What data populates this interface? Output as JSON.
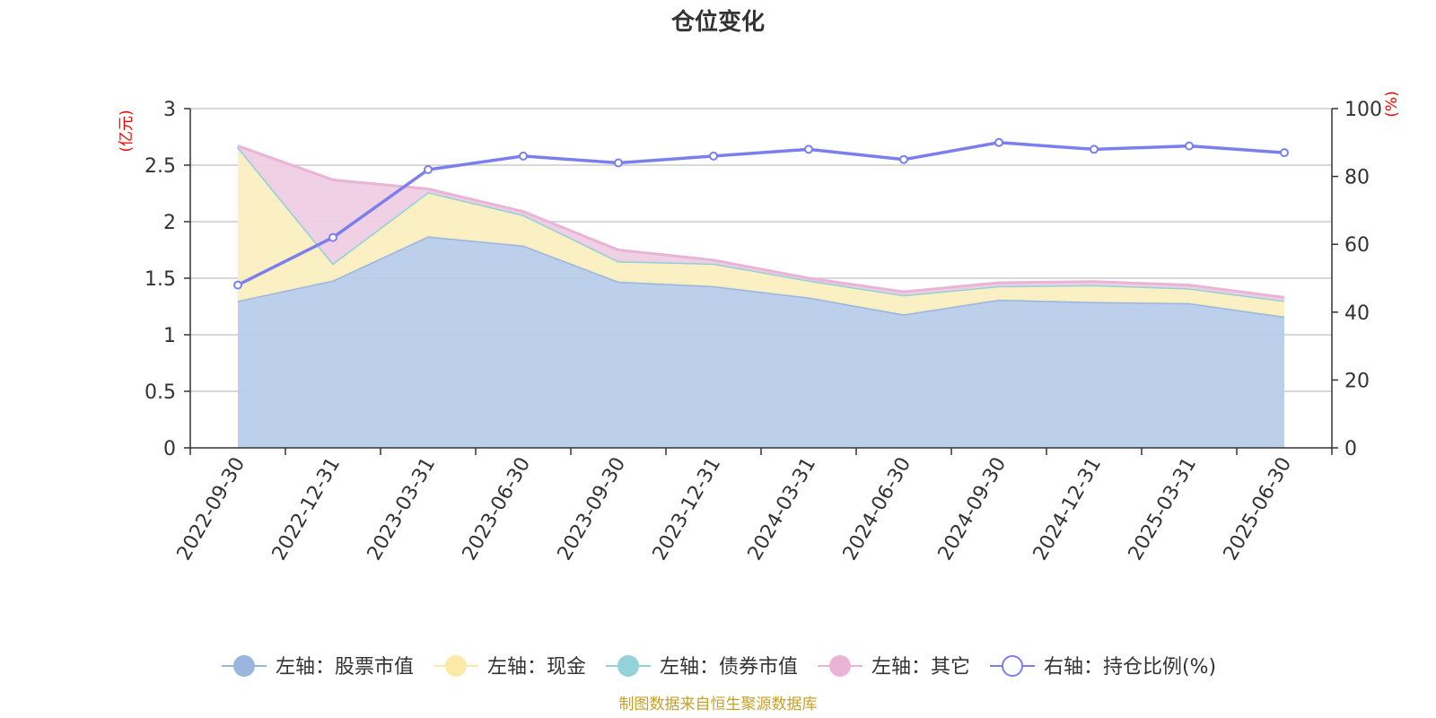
{
  "chart_data": {
    "type": "area",
    "title": "仓位变化",
    "left_unit": "(亿元)",
    "right_unit": "(%)",
    "source_note": "制图数据来自恒生聚源数据库",
    "categories": [
      "2022-09-30",
      "2022-12-31",
      "2023-03-31",
      "2023-06-30",
      "2023-09-30",
      "2023-12-31",
      "2024-03-31",
      "2024-06-30",
      "2024-09-30",
      "2024-12-31",
      "2025-03-31",
      "2025-06-30"
    ],
    "left_axis": {
      "min": 0,
      "max": 3,
      "ticks": [
        "0",
        "0.5",
        "1",
        "1.5",
        "2",
        "2.5",
        "3"
      ]
    },
    "right_axis": {
      "min": 0,
      "max": 100,
      "ticks": [
        "0",
        "20",
        "40",
        "60",
        "80",
        "100"
      ]
    },
    "stacked_series": [
      {
        "name": "左轴：股票市值",
        "color": "#9ab5de",
        "fill": "#b8cdea",
        "values": [
          1.3,
          1.48,
          1.87,
          1.79,
          1.47,
          1.43,
          1.33,
          1.18,
          1.31,
          1.29,
          1.28,
          1.16
        ]
      },
      {
        "name": "左轴：现金",
        "color": "#fbe9a8",
        "fill": "#fbefc0",
        "values": [
          1.36,
          0.15,
          0.39,
          0.27,
          0.18,
          0.2,
          0.15,
          0.17,
          0.12,
          0.15,
          0.13,
          0.14
        ]
      },
      {
        "name": "左轴：债券市值",
        "color": "#93d2d8",
        "fill": "#b6e2e6",
        "values": [
          0,
          0,
          0,
          0,
          0,
          0,
          0,
          0,
          0,
          0,
          0,
          0
        ]
      },
      {
        "name": "左轴：其它",
        "color": "#e9b4d6",
        "fill": "#efcde4",
        "values": [
          0.01,
          0.74,
          0.03,
          0.03,
          0.1,
          0.03,
          0.02,
          0.03,
          0.03,
          0.03,
          0.03,
          0.03
        ]
      }
    ],
    "line_series": {
      "name": "右轴：持仓比例(%)",
      "color": "#7b7fed",
      "values": [
        48,
        62,
        82,
        86,
        84,
        86,
        88,
        85,
        90,
        88,
        89,
        87
      ]
    },
    "grid": true,
    "legend_position": "bottom"
  }
}
